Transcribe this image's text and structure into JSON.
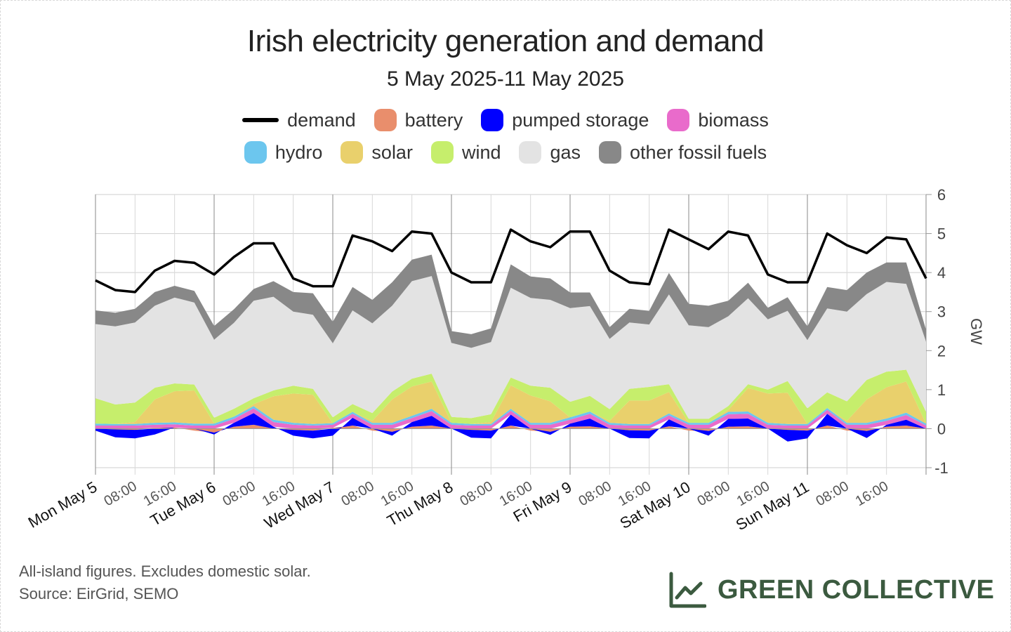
{
  "title": "Irish electricity generation and demand",
  "subtitle": "5 May 2025-11 May 2025",
  "legend": [
    {
      "key": "demand",
      "label": "demand",
      "color": "#000000",
      "kind": "line"
    },
    {
      "key": "battery",
      "label": "battery",
      "color": "#e98e6c",
      "kind": "area"
    },
    {
      "key": "pumped",
      "label": "pumped storage",
      "color": "#0000ff",
      "kind": "area"
    },
    {
      "key": "biomass",
      "label": "biomass",
      "color": "#e96bcb",
      "kind": "area"
    },
    {
      "key": "hydro",
      "label": "hydro",
      "color": "#6cc6ee",
      "kind": "area"
    },
    {
      "key": "solar",
      "label": "solar",
      "color": "#e9d06c",
      "kind": "area"
    },
    {
      "key": "wind",
      "label": "wind",
      "color": "#c6ee6c",
      "kind": "area"
    },
    {
      "key": "gas",
      "label": "gas",
      "color": "#e3e3e3",
      "kind": "area"
    },
    {
      "key": "other",
      "label": "other fossil fuels",
      "color": "#888888",
      "kind": "area"
    }
  ],
  "axis": {
    "y_label": "GW",
    "y_ticks": [
      "6",
      "5",
      "4",
      "3",
      "2",
      "1",
      "0",
      "-1"
    ],
    "x_major_labels": [
      "Mon May 5",
      "Tue May 6",
      "Wed May 7",
      "Thu May 8",
      "Fri May 9",
      "Sat May 10",
      "Sun May 11"
    ],
    "x_minor_labels": [
      "08:00",
      "16:00"
    ]
  },
  "chart_data": {
    "type": "area",
    "x_unit": "hours since Mon May 5 00:00",
    "ylim": [
      -1,
      6
    ],
    "x": [
      0,
      4,
      8,
      12,
      16,
      20,
      24,
      28,
      32,
      36,
      40,
      44,
      48,
      52,
      56,
      60,
      64,
      68,
      72,
      76,
      80,
      84,
      88,
      92,
      96,
      100,
      104,
      108,
      112,
      116,
      120,
      124,
      128,
      132,
      136,
      140,
      144,
      148,
      152,
      156,
      160,
      164,
      168
    ],
    "series": [
      {
        "name": "demand",
        "values": [
          3.8,
          3.55,
          3.5,
          4.05,
          4.3,
          4.25,
          3.95,
          4.4,
          4.75,
          4.75,
          3.85,
          3.65,
          3.65,
          4.95,
          4.8,
          4.55,
          5.05,
          5.0,
          4.0,
          3.75,
          3.75,
          5.1,
          4.8,
          4.65,
          5.05,
          5.05,
          4.05,
          3.75,
          3.7,
          5.1,
          4.85,
          4.6,
          5.05,
          4.95,
          3.95,
          3.75,
          3.75,
          5.0,
          4.7,
          4.5,
          4.9,
          4.85,
          3.85
        ]
      },
      {
        "name": "battery",
        "values": [
          0.0,
          -0.02,
          -0.03,
          0.02,
          0.03,
          -0.05,
          -0.1,
          0.05,
          0.1,
          0.0,
          -0.03,
          -0.05,
          0.02,
          0.08,
          -0.05,
          -0.08,
          0.05,
          0.08,
          0.0,
          -0.03,
          -0.05,
          0.08,
          -0.05,
          -0.08,
          0.05,
          0.06,
          0.0,
          -0.04,
          -0.05,
          0.06,
          -0.05,
          -0.06,
          0.05,
          0.06,
          0.0,
          -0.03,
          -0.05,
          0.08,
          -0.05,
          -0.06,
          0.05,
          0.08,
          0.0
        ]
      },
      {
        "name": "pumped storage",
        "values": [
          -0.05,
          -0.2,
          -0.22,
          -0.15,
          0.0,
          0.0,
          -0.05,
          0.1,
          0.3,
          0.05,
          -0.15,
          -0.2,
          -0.18,
          0.2,
          0.0,
          -0.1,
          0.12,
          0.25,
          0.0,
          -0.2,
          -0.2,
          0.28,
          0.0,
          -0.08,
          0.08,
          0.2,
          0.0,
          -0.2,
          -0.2,
          0.18,
          0.0,
          -0.12,
          0.2,
          0.2,
          0.0,
          -0.3,
          -0.2,
          0.3,
          0.0,
          -0.18,
          0.05,
          0.15,
          0.0
        ]
      },
      {
        "name": "biomass",
        "values": [
          0.08,
          0.08,
          0.08,
          0.08,
          0.08,
          0.08,
          0.08,
          0.1,
          0.12,
          0.12,
          0.1,
          0.08,
          0.08,
          0.1,
          0.1,
          0.1,
          0.1,
          0.12,
          0.1,
          0.08,
          0.08,
          0.1,
          0.1,
          0.1,
          0.1,
          0.12,
          0.1,
          0.08,
          0.08,
          0.1,
          0.1,
          0.1,
          0.12,
          0.12,
          0.1,
          0.08,
          0.08,
          0.1,
          0.1,
          0.1,
          0.1,
          0.12,
          0.08
        ]
      },
      {
        "name": "hydro",
        "values": [
          0.05,
          0.04,
          0.04,
          0.05,
          0.05,
          0.05,
          0.05,
          0.06,
          0.06,
          0.06,
          0.05,
          0.04,
          0.04,
          0.05,
          0.05,
          0.05,
          0.06,
          0.06,
          0.05,
          0.04,
          0.04,
          0.05,
          0.05,
          0.05,
          0.06,
          0.06,
          0.05,
          0.04,
          0.04,
          0.05,
          0.05,
          0.05,
          0.06,
          0.06,
          0.05,
          0.04,
          0.04,
          0.05,
          0.05,
          0.05,
          0.06,
          0.06,
          0.05
        ]
      },
      {
        "name": "solar",
        "values": [
          0.0,
          0.0,
          0.05,
          0.6,
          0.8,
          0.85,
          0.0,
          0.0,
          0.05,
          0.6,
          0.75,
          0.75,
          0.0,
          0.0,
          0.05,
          0.6,
          0.75,
          0.7,
          0.0,
          0.0,
          0.05,
          0.6,
          0.7,
          0.55,
          0.0,
          0.0,
          0.05,
          0.6,
          0.6,
          0.55,
          0.0,
          0.0,
          0.05,
          0.6,
          0.75,
          0.8,
          0.0,
          0.0,
          0.05,
          0.6,
          0.8,
          0.8,
          0.0
        ]
      },
      {
        "name": "wind",
        "values": [
          0.65,
          0.5,
          0.5,
          0.3,
          0.2,
          0.15,
          0.15,
          0.2,
          0.15,
          0.15,
          0.2,
          0.15,
          0.15,
          0.2,
          0.2,
          0.2,
          0.2,
          0.2,
          0.15,
          0.15,
          0.2,
          0.2,
          0.25,
          0.35,
          0.4,
          0.4,
          0.3,
          0.3,
          0.35,
          0.2,
          0.1,
          0.1,
          0.1,
          0.1,
          0.1,
          0.3,
          0.4,
          0.4,
          0.5,
          0.5,
          0.4,
          0.3,
          0.3
        ]
      },
      {
        "name": "gas",
        "values": [
          1.9,
          2.0,
          2.05,
          2.1,
          2.2,
          2.1,
          2.0,
          2.2,
          2.5,
          2.4,
          1.9,
          1.9,
          1.9,
          2.4,
          2.3,
          2.2,
          2.5,
          2.5,
          1.9,
          1.8,
          1.85,
          2.3,
          2.25,
          2.25,
          2.4,
          2.3,
          1.8,
          1.7,
          1.6,
          2.3,
          2.4,
          2.35,
          2.3,
          2.2,
          1.8,
          1.8,
          1.75,
          2.15,
          2.3,
          2.2,
          2.3,
          2.2,
          1.8
        ]
      },
      {
        "name": "other fossil fuels",
        "values": [
          0.35,
          0.35,
          0.35,
          0.35,
          0.3,
          0.3,
          0.35,
          0.35,
          0.3,
          0.4,
          0.5,
          0.55,
          0.55,
          0.6,
          0.6,
          0.6,
          0.55,
          0.55,
          0.3,
          0.35,
          0.35,
          0.6,
          0.55,
          0.55,
          0.4,
          0.35,
          0.3,
          0.35,
          0.35,
          0.55,
          0.55,
          0.55,
          0.4,
          0.4,
          0.3,
          0.35,
          0.35,
          0.55,
          0.55,
          0.55,
          0.5,
          0.55,
          0.3
        ]
      }
    ],
    "grid": true,
    "legend_position": "top"
  },
  "footnotes": [
    "All-island figures. Excludes domestic solar.",
    "Source: EirGrid, SEMO"
  ],
  "brand": "GREEN COLLECTIVE"
}
